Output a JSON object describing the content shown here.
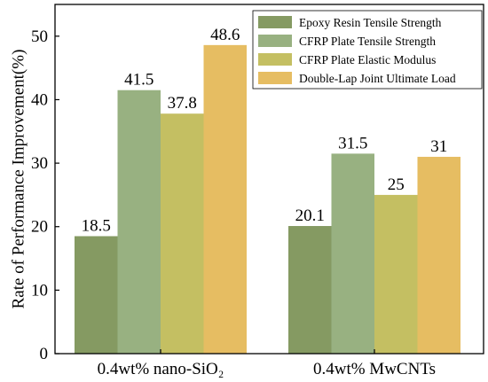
{
  "chart_data": {
    "type": "bar",
    "ylabel": "Rate of Performance Improvement(%)",
    "ylim": [
      0,
      55
    ],
    "yticks": [
      0,
      10,
      20,
      30,
      40,
      50
    ],
    "grid": false,
    "legend_position": "top-right",
    "categories": [
      "0.4wt% nano-SiO₂",
      "0.4wt% MwCNTs"
    ],
    "series": [
      {
        "name": "Epoxy Resin Tensile Strength",
        "color": "#859a62",
        "values": [
          18.5,
          20.1
        ],
        "labels": [
          "18.5",
          "20.1"
        ]
      },
      {
        "name": "CFRP Plate Tensile Strength",
        "color": "#98b181",
        "values": [
          41.5,
          31.5
        ],
        "labels": [
          "41.5",
          "31.5"
        ]
      },
      {
        "name": "CFRP Plate Elastic Modulus",
        "color": "#c4bf62",
        "values": [
          37.8,
          25
        ],
        "labels": [
          "37.8",
          "25"
        ]
      },
      {
        "name": "Double-Lap Joint Ultimate Load",
        "color": "#e6bd62",
        "values": [
          48.6,
          31
        ],
        "labels": [
          "48.6",
          "31"
        ]
      }
    ]
  }
}
